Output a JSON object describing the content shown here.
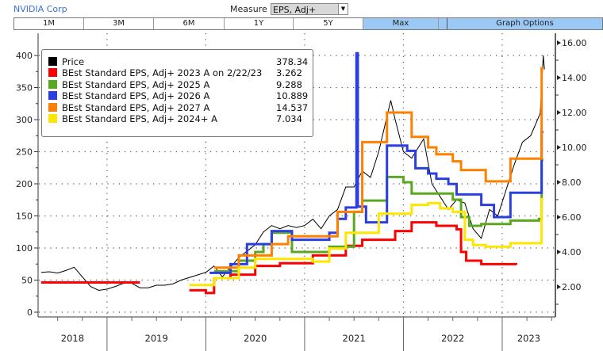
{
  "header": {
    "title": "NVIDIA Corp",
    "measure_label": "Measure",
    "measure_value": "EPS, Adj+"
  },
  "tabs": [
    {
      "label": "1M"
    },
    {
      "label": "3M"
    },
    {
      "label": "6M"
    },
    {
      "label": "1Y"
    },
    {
      "label": "5Y"
    },
    {
      "label": "Max",
      "active": true
    },
    {
      "label": "Graph Options",
      "active": true
    }
  ],
  "chart_data": {
    "type": "line",
    "x_range": [
      "2018-04-20",
      "2023-07-15"
    ],
    "left_axis": {
      "range": [
        0,
        400
      ],
      "ticks": [
        "0",
        "50",
        "100",
        "150",
        "200",
        "250",
        "300",
        "350",
        "400"
      ]
    },
    "right_axis": {
      "range": [
        0,
        16
      ],
      "ticks": [
        "2.00",
        "4.00",
        "6.00",
        "8.00",
        "10.00",
        "12.00",
        "14.00",
        "16.00"
      ]
    },
    "x_ticks": [
      "2018",
      "2019",
      "2020",
      "2021",
      "2022",
      "2023"
    ],
    "grid": true,
    "legend_placement": "top-left",
    "series": [
      {
        "name": "Price",
        "value": "378.34",
        "color": "#000000",
        "axis": "left",
        "style": "line",
        "segments": [
          [
            [
              "2018-05-01",
              62
            ],
            [
              "2018-06-01",
              63
            ],
            [
              "2018-07-01",
              61
            ],
            [
              "2018-08-01",
              65
            ],
            [
              "2018-09-01",
              70
            ],
            [
              "2018-10-01",
              55
            ],
            [
              "2018-11-01",
              40
            ],
            [
              "2018-12-01",
              34
            ],
            [
              "2019-01-01",
              36
            ],
            [
              "2019-02-01",
              40
            ],
            [
              "2019-03-01",
              45
            ],
            [
              "2019-04-01",
              45
            ],
            [
              "2019-05-01",
              38
            ],
            [
              "2019-06-01",
              38
            ],
            [
              "2019-07-01",
              42
            ],
            [
              "2019-08-01",
              42
            ],
            [
              "2019-09-01",
              44
            ],
            [
              "2019-10-01",
              50
            ],
            [
              "2019-11-01",
              54
            ],
            [
              "2019-12-01",
              58
            ],
            [
              "2020-01-01",
              62
            ],
            [
              "2020-02-01",
              72
            ],
            [
              "2020-03-01",
              55
            ],
            [
              "2020-04-01",
              70
            ],
            [
              "2020-05-01",
              85
            ],
            [
              "2020-06-01",
              95
            ],
            [
              "2020-07-01",
              105
            ],
            [
              "2020-08-01",
              125
            ],
            [
              "2020-09-01",
              135
            ],
            [
              "2020-10-01",
              130
            ],
            [
              "2020-11-01",
              135
            ],
            [
              "2020-12-01",
              132
            ],
            [
              "2021-01-01",
              135
            ],
            [
              "2021-02-01",
              145
            ],
            [
              "2021-03-01",
              130
            ],
            [
              "2021-04-01",
              150
            ],
            [
              "2021-05-01",
              160
            ],
            [
              "2021-06-01",
              195
            ],
            [
              "2021-07-01",
              195
            ],
            [
              "2021-08-01",
              220
            ],
            [
              "2021-09-01",
              210
            ],
            [
              "2021-10-01",
              250
            ],
            [
              "2021-11-15",
              330
            ],
            [
              "2021-12-01",
              300
            ],
            [
              "2022-01-01",
              250
            ],
            [
              "2022-02-01",
              240
            ],
            [
              "2022-03-15",
              270
            ],
            [
              "2022-04-15",
              200
            ],
            [
              "2022-05-15",
              180
            ],
            [
              "2022-06-15",
              160
            ],
            [
              "2022-07-15",
              175
            ],
            [
              "2022-08-15",
              170
            ],
            [
              "2022-09-15",
              130
            ],
            [
              "2022-10-15",
              115
            ],
            [
              "2022-11-15",
              160
            ],
            [
              "2022-12-15",
              150
            ],
            [
              "2023-01-15",
              190
            ],
            [
              "2023-02-15",
              230
            ],
            [
              "2023-03-15",
              265
            ],
            [
              "2023-04-15",
              275
            ],
            [
              "2023-05-20",
              310
            ],
            [
              "2023-05-31",
              400
            ],
            [
              "2023-06-05",
              378.34
            ]
          ]
        ]
      },
      {
        "name": "BEst Standard EPS, Adj+ 2023 A on 2/22/23",
        "value": "3.262",
        "color": "#ff0000",
        "axis": "right",
        "style": "step",
        "segments": [
          [
            [
              "2018-05-01",
              2.25
            ],
            [
              "2019-05-01",
              2.25
            ]
          ],
          [
            [
              "2019-11-01",
              1.8
            ],
            [
              "2020-01-01",
              1.65
            ],
            [
              "2020-02-01",
              2.5
            ],
            [
              "2020-04-01",
              2.7
            ],
            [
              "2020-07-01",
              3.2
            ],
            [
              "2020-10-01",
              3.35
            ],
            [
              "2021-02-01",
              3.8
            ],
            [
              "2021-06-01",
              4.35
            ],
            [
              "2021-08-01",
              4.7
            ],
            [
              "2021-12-01",
              5.2
            ],
            [
              "2022-02-01",
              5.7
            ],
            [
              "2022-05-01",
              5.5
            ],
            [
              "2022-07-15",
              5.3
            ],
            [
              "2022-08-01",
              4.0
            ],
            [
              "2022-08-20",
              3.5
            ],
            [
              "2022-10-15",
              3.3
            ],
            [
              "2023-02-22",
              3.262
            ]
          ]
        ]
      },
      {
        "name": "BEst Standard EPS, Adj+ 2025 A",
        "value": "9.288",
        "color": "#5aa820",
        "axis": "right",
        "style": "step",
        "segments": [
          [
            [
              "2020-02-01",
              2.9
            ],
            [
              "2020-05-01",
              3.5
            ],
            [
              "2020-07-01",
              4.0
            ],
            [
              "2020-08-01",
              4.45
            ],
            [
              "2020-09-01",
              5.1
            ],
            [
              "2020-11-15",
              4.0
            ],
            [
              "2021-04-01",
              4.3
            ],
            [
              "2021-07-01",
              6.3
            ],
            [
              "2021-08-01",
              6.95
            ],
            [
              "2021-11-01",
              8.3
            ],
            [
              "2022-01-01",
              8.0
            ],
            [
              "2022-02-01",
              7.35
            ],
            [
              "2022-07-01",
              7.0
            ],
            [
              "2022-08-01",
              6.0
            ],
            [
              "2022-09-01",
              5.5
            ],
            [
              "2022-10-15",
              5.6
            ],
            [
              "2023-02-01",
              5.8
            ],
            [
              "2023-05-15",
              5.9
            ],
            [
              "2023-05-25",
              9.288
            ],
            [
              "2023-06-01",
              9.288
            ]
          ]
        ]
      },
      {
        "name": "BEst Standard EPS, Adj+ 2026 A",
        "value": "10.889",
        "color": "#2b3fe0",
        "axis": "right",
        "style": "step",
        "segments": [
          [
            [
              "2020-01-15",
              2.8
            ],
            [
              "2020-04-01",
              3.3
            ],
            [
              "2020-06-01",
              4.45
            ],
            [
              "2020-09-01",
              5.2
            ],
            [
              "2020-11-15",
              4.7
            ],
            [
              "2021-04-01",
              5.1
            ],
            [
              "2021-05-01",
              5.9
            ],
            [
              "2021-06-01",
              6.55
            ],
            [
              "2021-07-10",
              15.4
            ],
            [
              "2021-07-15",
              6.6
            ],
            [
              "2021-08-15",
              5.7
            ],
            [
              "2021-11-01",
              10.1
            ],
            [
              "2022-01-15",
              9.8
            ],
            [
              "2022-02-15",
              8.8
            ],
            [
              "2022-04-01",
              8.5
            ],
            [
              "2022-05-01",
              8.2
            ],
            [
              "2022-06-15",
              7.9
            ],
            [
              "2022-07-15",
              7.3
            ],
            [
              "2022-10-15",
              6.7
            ],
            [
              "2022-12-01",
              6.0
            ],
            [
              "2023-02-01",
              7.4
            ],
            [
              "2023-05-15",
              7.4
            ],
            [
              "2023-05-25",
              10.889
            ],
            [
              "2023-06-01",
              10.889
            ]
          ]
        ]
      },
      {
        "name": "BEst Standard EPS, Adj+ 2027 A",
        "value": "14.537",
        "color": "#ff8000",
        "axis": "right",
        "style": "step",
        "segments": [
          [
            [
              "2020-02-01",
              3.1
            ],
            [
              "2020-05-01",
              3.8
            ],
            [
              "2020-09-01",
              4.45
            ],
            [
              "2020-11-01",
              4.9
            ],
            [
              "2021-05-01",
              6.3
            ],
            [
              "2021-08-01",
              10.3
            ],
            [
              "2021-11-01",
              12.0
            ],
            [
              "2022-02-01",
              10.6
            ],
            [
              "2022-04-01",
              10.0
            ],
            [
              "2022-05-01",
              9.6
            ],
            [
              "2022-07-01",
              9.2
            ],
            [
              "2022-08-01",
              8.7
            ],
            [
              "2022-11-01",
              8.05
            ],
            [
              "2023-02-01",
              9.35
            ],
            [
              "2023-05-25",
              14.537
            ],
            [
              "2023-06-01",
              14.537
            ]
          ]
        ]
      },
      {
        "name": "BEst Standard EPS, Adj+ 2024+ A",
        "value": "7.034",
        "color": "#ffe600",
        "axis": "right",
        "style": "step",
        "segments": [
          [
            [
              "2019-11-01",
              2.1
            ],
            [
              "2020-02-01",
              2.5
            ],
            [
              "2020-05-01",
              3.1
            ],
            [
              "2020-07-01",
              3.6
            ],
            [
              "2021-02-01",
              3.45
            ],
            [
              "2021-04-01",
              4.2
            ],
            [
              "2021-06-01",
              5.1
            ],
            [
              "2021-10-01",
              6.2
            ],
            [
              "2022-02-01",
              6.7
            ],
            [
              "2022-04-01",
              6.8
            ],
            [
              "2022-05-15",
              6.5
            ],
            [
              "2022-07-01",
              6.3
            ],
            [
              "2022-08-15",
              4.7
            ],
            [
              "2022-09-15",
              4.4
            ],
            [
              "2022-11-01",
              4.3
            ],
            [
              "2023-02-01",
              4.5
            ],
            [
              "2023-05-25",
              7.034
            ],
            [
              "2023-06-01",
              7.034
            ]
          ]
        ]
      }
    ]
  }
}
